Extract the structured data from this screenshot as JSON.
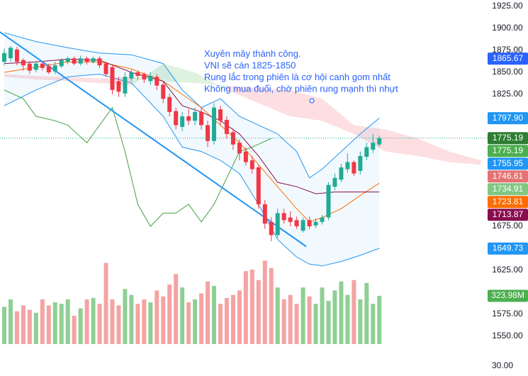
{
  "chart_data": {
    "type": "candlestick",
    "ylim": [
      1504.8,
      1932.3
    ],
    "yticks": [
      {
        "value": 1925,
        "label": "1925.00"
      },
      {
        "value": 1900,
        "label": "1900.00"
      },
      {
        "value": 1875,
        "label": "1875.00"
      },
      {
        "value": 1850,
        "label": "1850.00"
      },
      {
        "value": 1825,
        "label": "1825.00"
      },
      {
        "value": 1675,
        "label": "1675.00"
      },
      {
        "value": 1625,
        "label": "1625.00"
      },
      {
        "value": 1575,
        "label": "1575.00"
      },
      {
        "value": 1550,
        "label": "1550.00"
      }
    ],
    "bottom_axis_label": "30.00",
    "up_color": "#22ab94",
    "down_color": "#f23645",
    "open": [
      1862,
      1866,
      1876,
      1864,
      1860,
      1853,
      1860,
      1857,
      1851,
      1857,
      1862,
      1866,
      1860,
      1866,
      1862,
      1866,
      1860,
      1856,
      1840,
      1826,
      1843,
      1850,
      1848,
      1840,
      1845,
      1836,
      1822,
      1806,
      1788,
      1800,
      1795,
      1805,
      1790,
      1772,
      1808,
      1796,
      1782,
      1770,
      1760,
      1750,
      1742,
      1700,
      1680,
      1665,
      1690,
      1685,
      1682,
      1670,
      1682,
      1676,
      1680,
      1685,
      1720,
      1728,
      1740,
      1748,
      1738,
      1754,
      1762,
      1768
    ],
    "high": [
      1877,
      1880,
      1879,
      1866,
      1863,
      1863,
      1862,
      1860,
      1862,
      1866,
      1868,
      1868,
      1869,
      1868,
      1868,
      1868,
      1862,
      1858,
      1845,
      1850,
      1853,
      1852,
      1850,
      1850,
      1848,
      1840,
      1826,
      1810,
      1805,
      1808,
      1810,
      1810,
      1795,
      1815,
      1812,
      1800,
      1786,
      1774,
      1765,
      1755,
      1745,
      1705,
      1685,
      1695,
      1695,
      1692,
      1686,
      1685,
      1686,
      1684,
      1688,
      1725,
      1735,
      1746,
      1758,
      1750,
      1760,
      1770,
      1780,
      1778
    ],
    "low": [
      1858,
      1862,
      1858,
      1852,
      1848,
      1850,
      1852,
      1848,
      1848,
      1855,
      1859,
      1858,
      1858,
      1859,
      1860,
      1855,
      1845,
      1825,
      1822,
      1822,
      1840,
      1842,
      1838,
      1836,
      1830,
      1815,
      1800,
      1785,
      1783,
      1790,
      1790,
      1785,
      1765,
      1768,
      1790,
      1775,
      1762,
      1750,
      1744,
      1735,
      1695,
      1672,
      1658,
      1662,
      1678,
      1675,
      1672,
      1668,
      1672,
      1673,
      1677,
      1682,
      1716,
      1725,
      1736,
      1732,
      1734,
      1750,
      1758,
      1765
    ],
    "close": [
      1872,
      1878,
      1862,
      1858,
      1852,
      1860,
      1855,
      1850,
      1858,
      1864,
      1866,
      1860,
      1866,
      1862,
      1866,
      1858,
      1848,
      1830,
      1828,
      1845,
      1850,
      1846,
      1842,
      1846,
      1835,
      1820,
      1805,
      1790,
      1800,
      1795,
      1805,
      1790,
      1772,
      1810,
      1795,
      1780,
      1768,
      1758,
      1748,
      1740,
      1700,
      1678,
      1665,
      1690,
      1682,
      1680,
      1675,
      1682,
      1675,
      1680,
      1685,
      1722,
      1730,
      1742,
      1748,
      1735,
      1755,
      1765,
      1770,
      1775.19
    ],
    "volume": {
      "values": [
        250,
        300,
        220,
        260,
        230,
        210,
        300,
        260,
        280,
        270,
        300,
        190,
        240,
        300,
        310,
        270,
        545,
        300,
        260,
        370,
        330,
        270,
        300,
        280,
        360,
        320,
        400,
        470,
        380,
        280,
        300,
        340,
        420,
        390,
        270,
        310,
        330,
        360,
        490,
        500,
        430,
        560,
        510,
        380,
        300,
        330,
        270,
        380,
        320,
        270,
        380,
        290,
        360,
        420,
        330,
        430,
        300,
        410,
        270,
        323.98
      ],
      "ylim": [
        0,
        2310
      ],
      "up_color": "#8fcf93",
      "down_color": "#f5a3a3",
      "last": {
        "value": 323.98,
        "label": "323.98M",
        "color": "#4caf50"
      }
    },
    "bands": {
      "x": [
        0,
        5,
        10,
        15,
        20,
        25,
        28,
        31,
        34,
        37,
        40,
        43,
        46,
        48,
        50,
        53,
        56,
        59
      ],
      "upper": [
        1895,
        1885,
        1878,
        1872,
        1870,
        1860,
        1830,
        1810,
        1820,
        1800,
        1790,
        1780,
        1760,
        1730,
        1740,
        1760,
        1780,
        1798
      ],
      "lower": [
        1812,
        1830,
        1845,
        1848,
        1838,
        1800,
        1765,
        1760,
        1750,
        1735,
        1700,
        1660,
        1640,
        1632,
        1630,
        1635,
        1642,
        1650
      ],
      "color": "#2196f3",
      "fill": "rgba(33,150,243,0.06)"
    },
    "lines": [
      {
        "color": "#ff6d00",
        "x": [
          0,
          5,
          10,
          15,
          20,
          25,
          28,
          31,
          34,
          37,
          40,
          43,
          46,
          48,
          50,
          53,
          56,
          59
        ],
        "values": [
          1850,
          1856,
          1862,
          1862,
          1854,
          1840,
          1825,
          1810,
          1790,
          1770,
          1745,
          1720,
          1695,
          1680,
          1685,
          1695,
          1710,
          1724
        ]
      },
      {
        "color": "#880e4f",
        "x": [
          0,
          5,
          10,
          15,
          20,
          25,
          28,
          31,
          34,
          37,
          40,
          43,
          46,
          49,
          52,
          55,
          59
        ],
        "values": [
          1860,
          1862,
          1865,
          1864,
          1850,
          1840,
          1812,
          1805,
          1795,
          1780,
          1755,
          1725,
          1720,
          1712,
          1714,
          1714,
          1714
        ]
      },
      {
        "color": "#43a047",
        "x": [
          0,
          3,
          5,
          8,
          10,
          13,
          15,
          17,
          19,
          21,
          23,
          25,
          27,
          29,
          31,
          33,
          35,
          37,
          39,
          42
        ],
        "values": [
          1830,
          1820,
          1800,
          1795,
          1790,
          1770,
          1790,
          1810,
          1760,
          1700,
          1675,
          1690,
          1690,
          1700,
          1680,
          1700,
          1730,
          1760,
          1765,
          1775
        ]
      }
    ],
    "cloud": {
      "x": [
        0,
        5,
        10,
        15,
        20,
        25,
        30,
        35,
        40,
        45,
        50,
        55,
        60,
        65,
        70,
        75
      ],
      "span_a": [
        1845,
        1842,
        1840,
        1838,
        1835,
        1860,
        1850,
        1830,
        1815,
        1800,
        1795,
        1780,
        1760,
        1755,
        1748,
        1745
      ],
      "span_b": [
        1848,
        1846,
        1845,
        1843,
        1845,
        1840,
        1838,
        1835,
        1832,
        1830,
        1820,
        1790,
        1785,
        1775,
        1760,
        1750
      ],
      "up_color": "rgba(76,175,80,0.18)",
      "down_color": "rgba(242,54,69,0.16)"
    },
    "trendline": {
      "x": [
        -0.7,
        47.5
      ],
      "values": [
        1896,
        1652
      ],
      "color": "#2196f3"
    },
    "price_labels": [
      {
        "value": 1865.67,
        "label": "1865.67",
        "color": "#2962ff"
      },
      {
        "value": 1797.9,
        "label": "1797.90",
        "color": "#2196f3"
      },
      {
        "value": 1775.19,
        "label": "1775.19",
        "color": "#2e7d32"
      },
      {
        "value": 1775.19,
        "label": "1775.19",
        "color": "#4caf50"
      },
      {
        "value": 1755.95,
        "label": "1755.95",
        "color": "#2196f3"
      },
      {
        "value": 1746.61,
        "label": "1746.61",
        "color": "#e57373"
      },
      {
        "value": 1734.91,
        "label": "1734.91",
        "color": "#81c784"
      },
      {
        "value": 1723.81,
        "label": "1723.81",
        "color": "#ff6d00"
      },
      {
        "value": 1713.87,
        "label": "1713.87",
        "color": "#880e4f"
      },
      {
        "value": 1649.73,
        "label": "1649.73",
        "color": "#2196f3"
      }
    ],
    "annotation": [
      "Xuyên mây thành công.",
      "VNI sẽ cán 1825-1850",
      "Rung lắc trong phiên là cơ hội canh gom nhất",
      "Không mua đuổi, chờ phiên rung mạnh thì nhựt"
    ]
  }
}
